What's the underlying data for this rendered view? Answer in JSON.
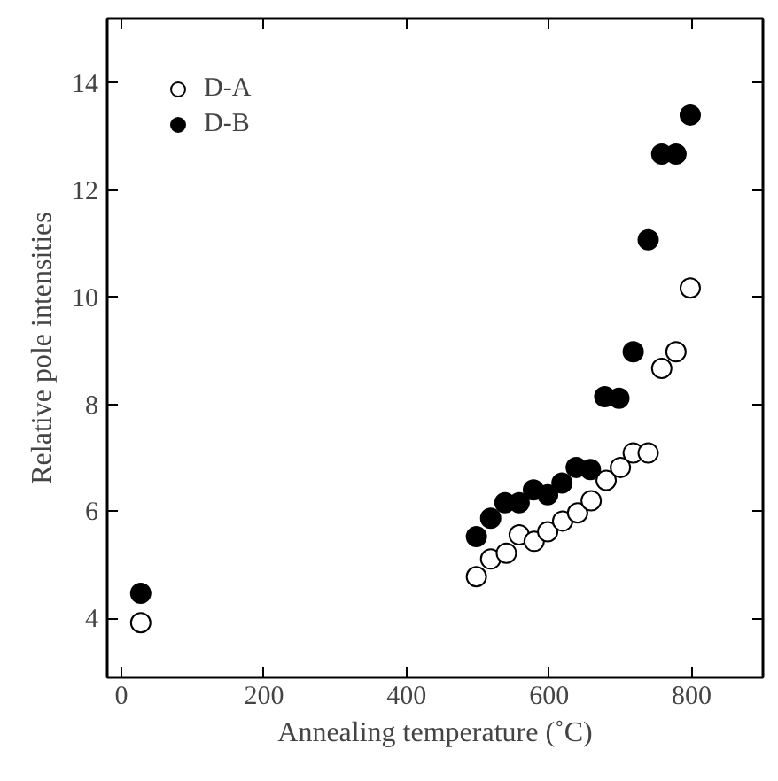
{
  "chart_data": {
    "type": "scatter",
    "xlabel": "Annealing temperature (˚C)",
    "ylabel": "Relative pole intensities",
    "xlim": [
      -20,
      900
    ],
    "ylim": [
      2.9,
      15.2
    ],
    "xticks": [
      0,
      200,
      400,
      600,
      800
    ],
    "yticks": [
      4,
      6,
      8,
      10,
      12,
      14
    ],
    "marker": "circle",
    "legend": "top left",
    "grid": false,
    "series": [
      {
        "name": "D-A",
        "color": "#ffffff",
        "x": [
          27,
          498,
          518,
          540,
          558,
          579,
          598,
          619,
          640,
          659,
          680,
          700,
          718,
          739,
          758,
          778,
          798
        ],
        "values": [
          3.92,
          4.78,
          5.11,
          5.22,
          5.56,
          5.44,
          5.62,
          5.82,
          5.97,
          6.2,
          6.58,
          6.82,
          7.09,
          7.09,
          8.67,
          8.98,
          10.17
        ]
      },
      {
        "name": "D-B",
        "color": "#000000",
        "x": [
          27,
          498,
          518,
          538,
          558,
          578,
          598,
          618,
          638,
          658,
          678,
          698,
          718,
          739,
          758,
          778,
          798
        ],
        "values": [
          4.47,
          5.53,
          5.87,
          6.16,
          6.16,
          6.4,
          6.31,
          6.53,
          6.82,
          6.78,
          8.14,
          8.11,
          8.98,
          11.07,
          12.67,
          12.67,
          13.4
        ]
      }
    ]
  }
}
